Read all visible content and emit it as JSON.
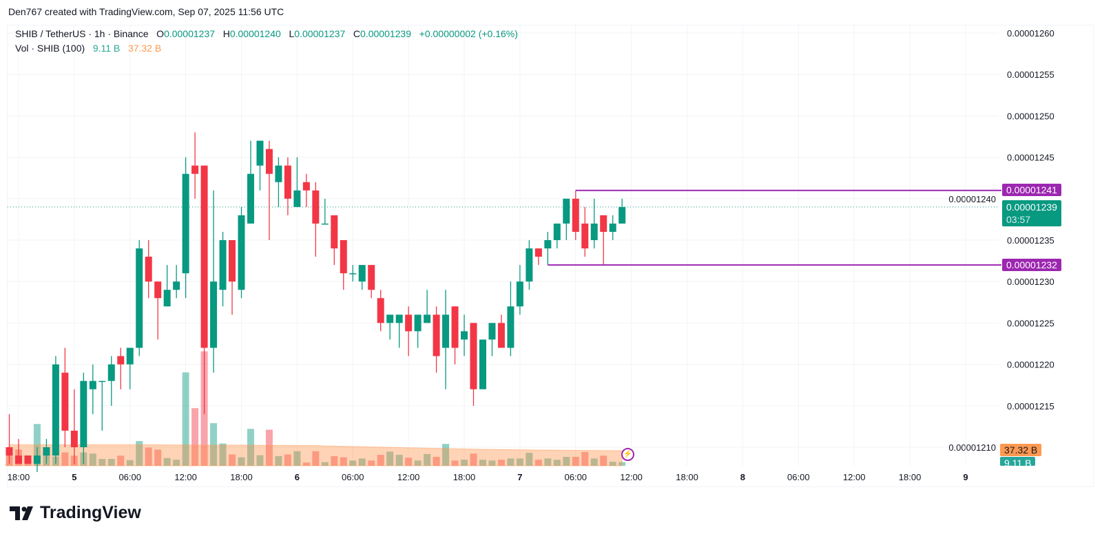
{
  "credit": "Den767 created with TradingView.com, Sep 07, 2025 11:56 UTC",
  "legend": {
    "symbol": "SHIB / TetherUS · 1h · Binance",
    "o_label": "O",
    "o": "0.00001237",
    "h_label": "H",
    "h": "0.00001240",
    "l_label": "L",
    "l": "0.00001237",
    "c_label": "C",
    "c": "0.00001239",
    "change": "+0.00000002 (+0.16%)",
    "vol_label": "Vol · SHIB (100)",
    "vol": "9.11 B",
    "vol_ma": "37.32 B"
  },
  "price_axis": {
    "ticks": [
      "0.00001260",
      "0.00001255",
      "0.00001250",
      "0.00001245",
      "0.00001240",
      "0.00001235",
      "0.00001230",
      "0.00001225",
      "0.00001220",
      "0.00001215",
      "0.00001210"
    ],
    "last_price_label": "0.00001239",
    "countdown": "03:57",
    "level_high_label": "0.00001241",
    "level_low_label": "0.00001232",
    "vol_ma_label": "37.32 B",
    "vol_label": "9.11 B"
  },
  "time_axis": [
    "18:00",
    "5",
    "06:00",
    "12:00",
    "18:00",
    "6",
    "06:00",
    "12:00",
    "18:00",
    "7",
    "06:00",
    "12:00",
    "18:00",
    "8",
    "06:00",
    "12:00",
    "18:00",
    "9"
  ],
  "colors": {
    "up": "#089981",
    "down": "#f23645",
    "level": "#9c27b0",
    "vol_ma": "#ff9850"
  },
  "icons": {
    "event_marker": "lightning-icon",
    "logo": "tradingview-logo"
  },
  "brand": "TradingView",
  "chart_data": {
    "type": "candlestick",
    "symbol": "SHIB / TetherUS",
    "interval": "1h",
    "x_start": "Sep 04 17:00",
    "x_end": "Sep 07 11:00",
    "ylim": [
      1.207e-05,
      1.262e-05
    ],
    "grid": true,
    "ohlc": [
      [
        1210,
        1214,
        1208,
        1209
      ],
      [
        1209,
        1211,
        1208,
        1208
      ],
      [
        1209,
        1209,
        1208,
        1208
      ],
      [
        1208,
        1210,
        1207,
        1209
      ],
      [
        1209,
        1211,
        1208,
        1210
      ],
      [
        1209,
        1221,
        1208,
        1220
      ],
      [
        1219,
        1222,
        1210,
        1212
      ],
      [
        1212,
        1217,
        1208,
        1210
      ],
      [
        1210,
        1219,
        1208,
        1218
      ],
      [
        1217,
        1220,
        1214,
        1218
      ],
      [
        1218,
        1218,
        1212,
        1218
      ],
      [
        1218,
        1221,
        1215,
        1220
      ],
      [
        1221,
        1222,
        1217,
        1220
      ],
      [
        1220,
        1222,
        1217,
        1222
      ],
      [
        1222,
        1235,
        1221,
        1234
      ],
      [
        1233,
        1235,
        1228,
        1230
      ],
      [
        1230,
        1230,
        1223,
        1228
      ],
      [
        1227,
        1232,
        1227,
        1229
      ],
      [
        1229,
        1232,
        1228,
        1230
      ],
      [
        1231,
        1245,
        1228,
        1243
      ],
      [
        1244,
        1248,
        1240,
        1243
      ],
      [
        1244,
        1244,
        1214,
        1222
      ],
      [
        1222,
        1241,
        1219,
        1230
      ],
      [
        1229,
        1236,
        1227,
        1235
      ],
      [
        1235,
        1235,
        1226,
        1230
      ],
      [
        1229,
        1239,
        1228,
        1238
      ],
      [
        1237,
        1247,
        1237,
        1243
      ],
      [
        1244,
        1247,
        1241,
        1247
      ],
      [
        1246,
        1247,
        1235,
        1243
      ],
      [
        1242,
        1245,
        1239,
        1244
      ],
      [
        1244,
        1245,
        1238,
        1240
      ],
      [
        1239,
        1245,
        1239,
        1241
      ],
      [
        1242,
        1243,
        1239,
        1241
      ],
      [
        1241,
        1242,
        1233,
        1237
      ],
      [
        1237,
        1240,
        1237,
        1237
      ],
      [
        1238,
        1238,
        1232,
        1234
      ],
      [
        1235,
        1235,
        1229,
        1231
      ],
      [
        1231,
        1232,
        1230,
        1231
      ],
      [
        1230,
        1232,
        1229,
        1232
      ],
      [
        1232,
        1232,
        1228,
        1229
      ],
      [
        1228,
        1229,
        1224,
        1225
      ],
      [
        1225,
        1226,
        1223,
        1226
      ],
      [
        1225,
        1226,
        1222,
        1226
      ],
      [
        1226,
        1227,
        1221,
        1224
      ],
      [
        1224,
        1226,
        1222,
        1226
      ],
      [
        1225,
        1229,
        1225,
        1226
      ],
      [
        1226,
        1227,
        1219,
        1221
      ],
      [
        1222,
        1229,
        1217,
        1226
      ],
      [
        1227,
        1227,
        1220,
        1222
      ],
      [
        1223,
        1226,
        1221,
        1224
      ],
      [
        1225,
        1225,
        1215,
        1217
      ],
      [
        1217,
        1223,
        1217,
        1223
      ],
      [
        1223,
        1225,
        1221,
        1225
      ],
      [
        1225,
        1226,
        1222,
        1222
      ],
      [
        1222,
        1230,
        1221,
        1227
      ],
      [
        1227,
        1232,
        1226,
        1230
      ],
      [
        1230,
        1235,
        1229,
        1234
      ],
      [
        1234,
        1234,
        1232,
        1233
      ],
      [
        1234,
        1236,
        1232,
        1235
      ],
      [
        1235,
        1237,
        1234,
        1237
      ],
      [
        1237,
        1240,
        1235,
        1240
      ],
      [
        1240,
        1241,
        1235,
        1236
      ],
      [
        1237,
        1239,
        1233,
        1234
      ],
      [
        1235,
        1240,
        1234,
        1237
      ],
      [
        1238,
        1238,
        1232,
        1236
      ],
      [
        1236,
        1238,
        1235,
        1237
      ],
      [
        1237,
        1240,
        1237,
        1239
      ]
    ],
    "ohlc_unit": "0.00000001",
    "volume_B": [
      46,
      40,
      25,
      103,
      33,
      23,
      33,
      25,
      33,
      30,
      17,
      17,
      25,
      14,
      61,
      45,
      40,
      19,
      15,
      230,
      142,
      282,
      105,
      55,
      28,
      21,
      91,
      26,
      89,
      24,
      28,
      36,
      8,
      36,
      9,
      24,
      21,
      13,
      18,
      13,
      27,
      35,
      27,
      20,
      13,
      29,
      22,
      54,
      13,
      15,
      30,
      15,
      13,
      15,
      18,
      18,
      32,
      15,
      18,
      15,
      22,
      22,
      34,
      18,
      25,
      10,
      9.11
    ],
    "volume_ma_B": [
      52,
      52,
      52,
      52,
      52,
      52,
      52,
      52,
      52,
      52,
      52,
      52,
      52,
      52,
      52,
      52,
      52,
      51.5,
      51.5,
      51.5,
      51,
      51,
      51,
      51,
      51,
      51,
      51,
      50.5,
      50.5,
      50.5,
      50.5,
      50,
      50,
      50,
      49,
      48.5,
      48,
      47.5,
      47,
      46.5,
      46,
      45.5,
      45,
      44.5,
      44,
      43.5,
      43,
      42.5,
      42,
      41.5,
      41,
      40.7,
      40.4,
      40.1,
      39.8,
      39.5,
      39.2,
      39,
      38.8,
      38.6,
      38.4,
      38.2,
      38,
      37.8,
      37.6,
      37.4,
      37.32
    ],
    "levels": [
      {
        "price": 1.241e-05,
        "from_bar": 62
      },
      {
        "price": 1.232e-05,
        "from_bar": 59
      }
    ],
    "last_price": 1.239e-05
  }
}
